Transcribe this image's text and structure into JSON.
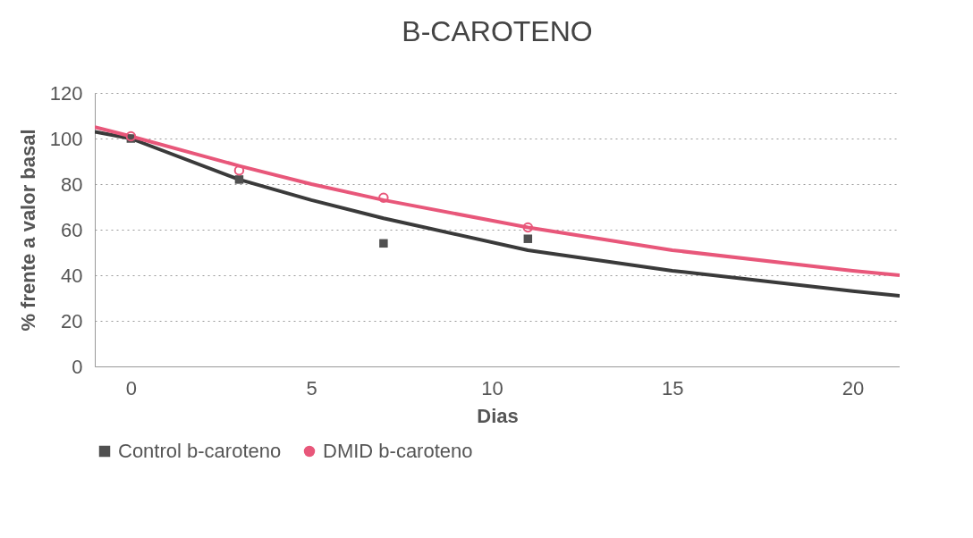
{
  "chart_data": {
    "type": "scatter",
    "title": "B-CAROTENO",
    "xlabel": "Dias",
    "ylabel": "% frente a valor basal",
    "xlim": [
      -1,
      21.3
    ],
    "xticks": [
      0,
      5,
      10,
      15,
      20
    ],
    "ylim": [
      0,
      120
    ],
    "yticks": [
      0,
      20,
      40,
      60,
      80,
      100,
      120
    ],
    "grid": "y",
    "legend": "bottom",
    "series": [
      {
        "name": "Control b-caroteno",
        "marker": "square",
        "color": "#505050",
        "x": [
          0,
          3,
          7,
          11
        ],
        "values": [
          100,
          82,
          54,
          56
        ]
      },
      {
        "name": "DMID b-caroteno",
        "marker": "circle",
        "color": "#e8577a",
        "x": [
          0,
          3,
          7,
          11
        ],
        "values": [
          101,
          86,
          74,
          61
        ]
      },
      {
        "type": "line",
        "marker": "none",
        "color": "#3a3a3a",
        "x": [
          -1,
          0,
          3,
          5,
          7,
          11,
          15,
          20,
          21.3
        ],
        "values": [
          103,
          100,
          82,
          73,
          65,
          51,
          42,
          33,
          31
        ]
      },
      {
        "type": "line",
        "marker": "none",
        "color": "#e8577a",
        "x": [
          -1,
          0,
          3,
          5,
          7,
          11,
          15,
          20,
          21.3
        ],
        "values": [
          105,
          101,
          88,
          80,
          73,
          61,
          51,
          42,
          40
        ]
      }
    ]
  }
}
